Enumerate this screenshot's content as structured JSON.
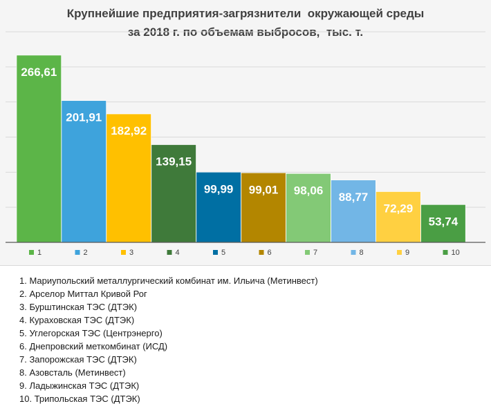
{
  "chart_data": {
    "type": "bar",
    "title_lines": [
      "Крупнейшие предприятия-загрязнители  окружающей среды",
      "за 2018 г. по объемам выбросов,  тыс. т."
    ],
    "categories": [
      "1",
      "2",
      "3",
      "4",
      "5",
      "6",
      "7",
      "8",
      "9",
      "10"
    ],
    "values": [
      266.61,
      201.91,
      182.92,
      139.15,
      99.99,
      99.01,
      98.06,
      88.77,
      72.29,
      53.74
    ],
    "value_labels": [
      "266,61",
      "201,91",
      "182,92",
      "139,15",
      "99,99",
      "99,01",
      "98,06",
      "88,77",
      "72,29",
      "53,74"
    ],
    "colors": [
      "#5cb548",
      "#3ea3dc",
      "#ffc000",
      "#3f7a3a",
      "#006fa3",
      "#b38600",
      "#83c976",
      "#72b6e6",
      "#ffd041",
      "#4a9e44"
    ],
    "ylim": [
      0,
      300
    ],
    "ytick_step": 50,
    "grid": true,
    "legend_position": "bottom",
    "xlabel": "",
    "ylabel": ""
  },
  "notes": [
    "1. Мариупольский металлургический комбинат им. Ильича (Метинвест)",
    "2. Арселор Миттал Кривой Рог",
    "3. Бурштинская ТЭС (ДТЭК)",
    "4. Кураховская ТЭС (ДТЭК)",
    "5. Углегорская ТЭС (Центрэнерго)",
    "6. Днепровский меткомбинат (ИСД)",
    "7. Запорожская ТЭС (ДТЭК)",
    "8. Азовсталь (Метинвест)",
    "9. Ладыжинская ТЭС (ДТЭК)",
    "10. Трипольская ТЭС (ДТЭК)"
  ]
}
